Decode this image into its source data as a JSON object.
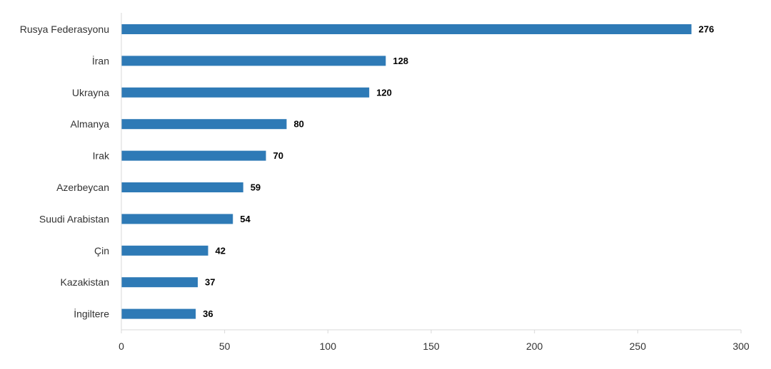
{
  "chart_data": {
    "type": "bar",
    "orientation": "horizontal",
    "categories": [
      "Rusya Federasyonu",
      "İran",
      "Ukrayna",
      "Almanya",
      "Irak",
      "Azerbeycan",
      "Suudi Arabistan",
      "Çin",
      "Kazakistan",
      "İngiltere"
    ],
    "values": [
      276,
      128,
      120,
      80,
      70,
      59,
      54,
      42,
      37,
      36
    ],
    "value_labels": [
      "276",
      "128",
      "120",
      "80",
      "70",
      "59",
      "54",
      "42",
      "37",
      "36"
    ],
    "xticks": [
      0,
      50,
      100,
      150,
      200,
      250,
      300
    ],
    "xtick_labels": [
      "0",
      "50",
      "100",
      "150",
      "200",
      "250",
      "300"
    ],
    "xlim": [
      0,
      300
    ],
    "grid": false,
    "legend": "none",
    "bar_color": "#2e7ab6"
  }
}
